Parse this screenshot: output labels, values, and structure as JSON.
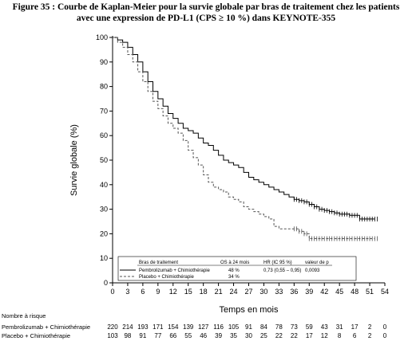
{
  "figure": {
    "title_line1": "Figure 35 : Courbe de Kaplan-Meier pour la survie globale par bras de traitement chez les patients",
    "title_line2": "avec une expression de PD-L1 (CPS ≥ 10 %) dans KEYNOTE-355"
  },
  "chart_data": {
    "type": "line",
    "xlabel": "Temps en mois",
    "ylabel": "Survie globale (%)",
    "xlim": [
      0,
      54
    ],
    "ylim": [
      0,
      100
    ],
    "xticks": [
      0,
      3,
      6,
      9,
      12,
      15,
      18,
      21,
      24,
      27,
      30,
      33,
      36,
      39,
      42,
      45,
      48,
      51,
      54
    ],
    "yticks": [
      0,
      10,
      20,
      30,
      40,
      50,
      60,
      70,
      80,
      90,
      100
    ],
    "grid": false,
    "series": [
      {
        "name": "Pembrolizumab + Chimiothérapie",
        "style": "solid",
        "color": "#000000",
        "x": [
          0,
          1,
          2,
          3,
          4,
          5,
          6,
          7,
          8,
          9,
          10,
          11,
          12,
          13,
          14,
          15,
          16,
          17,
          18,
          19,
          20,
          21,
          22,
          23,
          24,
          25,
          26,
          27,
          28,
          29,
          30,
          31,
          32,
          33,
          34,
          35,
          36,
          37,
          38,
          39,
          40,
          41,
          42,
          43,
          44,
          45,
          46,
          47,
          48,
          49,
          50,
          51,
          52
        ],
        "y": [
          100,
          99,
          98,
          96,
          93,
          90,
          86,
          82,
          78,
          75,
          72,
          69,
          67,
          65,
          63,
          62,
          61,
          59,
          57,
          56,
          54,
          52,
          50,
          49,
          48,
          47,
          45,
          43,
          42,
          41,
          40,
          39,
          38,
          37,
          36,
          35,
          34,
          33.5,
          33,
          32,
          31,
          30,
          29.5,
          29,
          28.5,
          28,
          28,
          27.5,
          27.5,
          26,
          26,
          26,
          26
        ]
      },
      {
        "name": "Placebo + Chimiothérapie",
        "style": "dashed",
        "color": "#555555",
        "x": [
          0,
          1,
          2,
          3,
          4,
          5,
          6,
          7,
          8,
          9,
          10,
          11,
          12,
          13,
          14,
          15,
          16,
          17,
          18,
          19,
          20,
          21,
          22,
          23,
          24,
          25,
          26,
          27,
          28,
          29,
          30,
          31,
          32,
          33,
          34,
          35,
          36,
          37,
          38,
          39,
          40,
          41,
          42,
          43,
          44,
          45,
          46,
          47,
          48,
          49,
          50,
          51,
          52
        ],
        "y": [
          100,
          98,
          96,
          93,
          90,
          86,
          82,
          78,
          74,
          71,
          68,
          65,
          63,
          61,
          58,
          54,
          51,
          48,
          44,
          41,
          39,
          38,
          37,
          35,
          34,
          33,
          31,
          30,
          29,
          28,
          27,
          26,
          23,
          22,
          22,
          22,
          22,
          21,
          20,
          18,
          18,
          18,
          18,
          18,
          18,
          18,
          18,
          18,
          18,
          18,
          18,
          18,
          18
        ]
      }
    ],
    "legend": {
      "position": "bottom-center",
      "header": [
        "Bras de traitement",
        "OS à 24 mois",
        "HR (IC 95 %)",
        "valeur de p"
      ],
      "rows": [
        [
          "Pembrolizumab + Chimiothérapie",
          "48 %",
          "0,73 (0,55 – 0,95)",
          "0,0093"
        ],
        [
          "Placebo + Chimiothérapie",
          "34 %",
          "",
          ""
        ]
      ]
    }
  },
  "risk_table": {
    "title": "Nombre à risque",
    "times": [
      0,
      3,
      6,
      9,
      12,
      15,
      18,
      21,
      24,
      27,
      30,
      33,
      36,
      39,
      42,
      45,
      48,
      51,
      54
    ],
    "rows": [
      {
        "label": "Pembrolizumab + Chimiothérapie",
        "values": [
          "220",
          "214",
          "193",
          "171",
          "154",
          "139",
          "127",
          "116",
          "105",
          "91",
          "84",
          "78",
          "73",
          "59",
          "43",
          "31",
          "17",
          "2",
          "0"
        ]
      },
      {
        "label": "Placebo + Chimiothérapie",
        "values": [
          "103",
          "98",
          "91",
          "77",
          "66",
          "55",
          "46",
          "39",
          "35",
          "30",
          "25",
          "22",
          "22",
          "17",
          "12",
          "8",
          "6",
          "2",
          "0"
        ]
      }
    ]
  }
}
